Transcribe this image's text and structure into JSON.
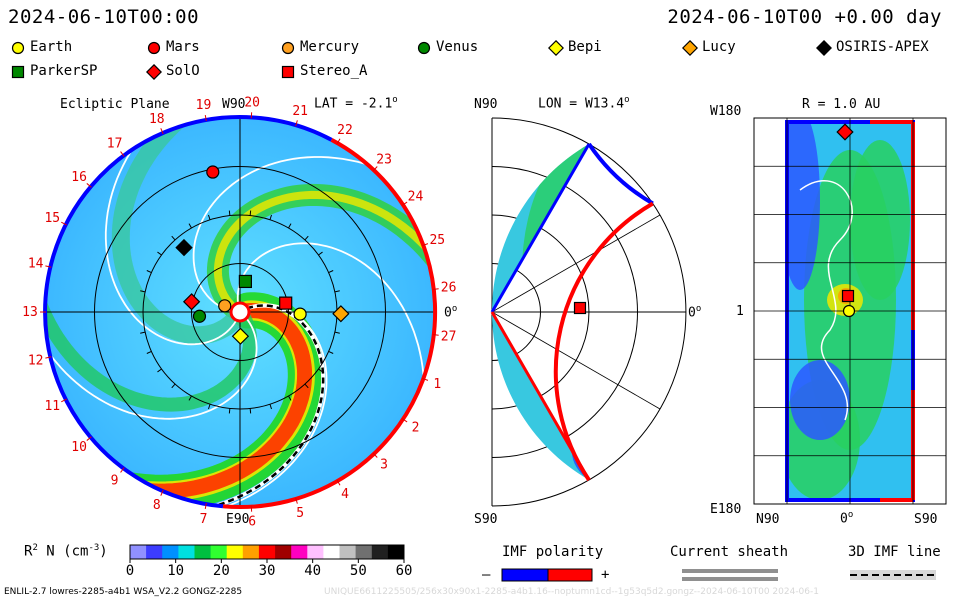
{
  "header": {
    "left_time": "2024-06-10T00:00",
    "right_time": "2024-06-10T00 +0.00 day"
  },
  "legend": [
    {
      "name": "Earth",
      "shape": "circle",
      "color": "#ffff00"
    },
    {
      "name": "Mars",
      "shape": "circle",
      "color": "#ff0000"
    },
    {
      "name": "Mercury",
      "shape": "circle",
      "color": "#ffa020"
    },
    {
      "name": "Venus",
      "shape": "circle",
      "color": "#008800"
    },
    {
      "name": "Bepi",
      "shape": "diamond",
      "color": "#ffff00"
    },
    {
      "name": "Lucy",
      "shape": "diamond",
      "color": "#ffa500"
    },
    {
      "name": "OSIRIS-APEX",
      "shape": "diamond",
      "color": "#000000"
    },
    {
      "name": "ParkerSP",
      "shape": "square",
      "color": "#008800"
    },
    {
      "name": "SolO",
      "shape": "diamond",
      "color": "#ff0000"
    },
    {
      "name": "Stereo_A",
      "shape": "square",
      "color": "#ff0000"
    }
  ],
  "chart_data": [
    {
      "type": "polar",
      "title": "Ecliptic Plane",
      "top_label": "W90",
      "bottom_label": "E90",
      "right_label": "0",
      "right_label_sup": "o",
      "lat_label": "LAT = -2.1",
      "lat_sup": "o",
      "carrington_ticks": [
        "19",
        "20",
        "21",
        "22",
        "23",
        "24",
        "25",
        "26",
        "27",
        "1",
        "2",
        "3",
        "4",
        "5",
        "6",
        "7",
        "8",
        "9",
        "10",
        "11",
        "12",
        "13",
        "14",
        "15",
        "16",
        "17",
        "18"
      ],
      "bodies": [
        {
          "name": "Mars",
          "r_au": 1.47,
          "angle_deg": 101
        },
        {
          "name": "OSIRIS-APEX",
          "r_au": 0.88,
          "angle_deg": 131
        },
        {
          "name": "ParkerSP",
          "r_au": 0.32,
          "angle_deg": 80
        },
        {
          "name": "SolO",
          "r_au": 0.51,
          "angle_deg": 168
        },
        {
          "name": "Mercury",
          "r_au": 0.17,
          "angle_deg": 158
        },
        {
          "name": "Venus",
          "r_au": 0.42,
          "angle_deg": 186
        },
        {
          "name": "Stereo_A",
          "r_au": 0.48,
          "angle_deg": 11
        },
        {
          "name": "Earth",
          "r_au": 0.62,
          "angle_deg": -2
        },
        {
          "name": "Lucy",
          "r_au": 1.04,
          "angle_deg": -1
        },
        {
          "name": "Bepi",
          "r_au": 0.25,
          "angle_deg": -89
        }
      ]
    },
    {
      "type": "meridional",
      "top_label": "N90",
      "bottom_label": "S90",
      "right_label": "0",
      "right_label_sup": "o",
      "lon_label": "LON = W13.4",
      "lon_sup": "o"
    },
    {
      "type": "heatmap",
      "title": "R = 1.0 AU",
      "y_top": "W180",
      "y_mid": "1",
      "y_bottom": "E180",
      "x_left": "N90",
      "x_mid": "0",
      "x_mid_sup": "o",
      "x_right": "S90"
    }
  ],
  "colorbar": {
    "label": "R",
    "label_sup": "2",
    "label_rest": " N (cm",
    "label_exp": "-3",
    "label_end": ")",
    "ticks": [
      "0",
      "10",
      "20",
      "30",
      "40",
      "50",
      "60"
    ],
    "stops": [
      "#9090ff",
      "#3c3cff",
      "#0090ff",
      "#00e0e0",
      "#00c040",
      "#30ff30",
      "#ffff00",
      "#ffa000",
      "#ff0000",
      "#a00000",
      "#ff00c0",
      "#ffc0ff",
      "#ffffff",
      "#c0c0c0",
      "#707070",
      "#202020",
      "#000000"
    ]
  },
  "imf": {
    "title": "IMF polarity",
    "minus": "–",
    "plus": "+"
  },
  "sheath": {
    "title": "Current sheath"
  },
  "imf3d": {
    "title": "3D IMF line"
  },
  "footer": {
    "left": "ENLIL-2.7 lowres-2285-a4b1 WSA_V2.2 GONGZ-2285",
    "right": "UNIQUE6611225505/256x30x90x1-2285-a4b1.16--noptumn1cd--1g53q5d2.gongz--2024-06-10T00  2024-06-1"
  }
}
